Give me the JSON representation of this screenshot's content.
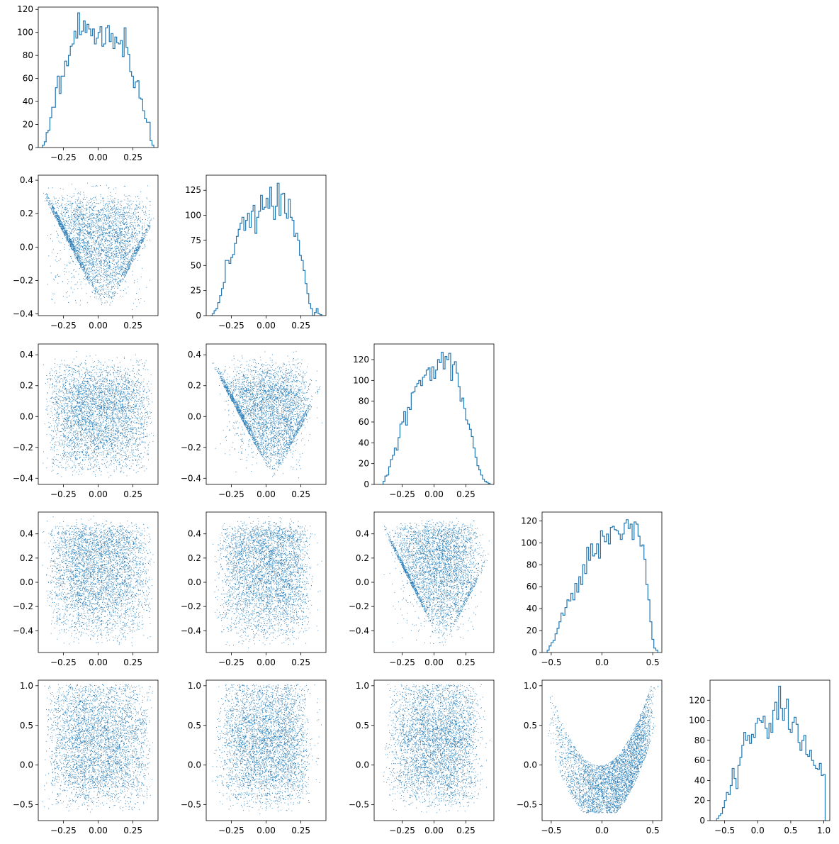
{
  "figure": {
    "type": "corner-plot",
    "grid": "5x5 lower-triangular",
    "dimensions": 5,
    "samples_per_dimension_approx": 5000
  },
  "chart_data": [
    {
      "type": "histogram",
      "panel": "hist-0",
      "row": 0,
      "col": 0,
      "histtype": "step",
      "color": "#1f77b4",
      "xlim": [
        -0.43,
        0.43
      ],
      "ylim": [
        0,
        122
      ],
      "xticks": [
        -0.25,
        0.0,
        0.25
      ],
      "xtick_labels": [
        "−0.25",
        "0.00",
        "0.25"
      ],
      "yticks": [
        0,
        20,
        40,
        60,
        80,
        100,
        120
      ],
      "ytick_labels": [
        "0",
        "20",
        "40",
        "60",
        "80",
        "100",
        "120"
      ],
      "bin_range": [
        -0.4,
        0.4
      ],
      "counts": [
        2,
        5,
        13,
        15,
        26,
        35,
        35,
        52,
        62,
        47,
        62,
        62,
        75,
        71,
        80,
        88,
        90,
        101,
        95,
        117,
        98,
        101,
        110,
        100,
        107,
        103,
        97,
        103,
        90,
        95,
        100,
        105,
        88,
        90,
        104,
        106,
        92,
        99,
        86,
        96,
        91,
        90,
        93,
        79,
        104,
        87,
        81,
        66,
        62,
        52,
        57,
        58,
        43,
        42,
        32,
        25,
        22,
        22,
        6,
        2
      ]
    },
    {
      "type": "histogram",
      "panel": "hist-1",
      "row": 1,
      "col": 1,
      "histtype": "step",
      "color": "#1f77b4",
      "xlim": [
        -0.43,
        0.43
      ],
      "ylim": [
        0,
        140
      ],
      "xticks": [
        -0.25,
        0.0,
        0.25
      ],
      "xtick_labels": [
        "−0.25",
        "0.00",
        "0.25"
      ],
      "yticks": [
        0,
        25,
        50,
        75,
        100,
        125
      ],
      "ytick_labels": [
        "0",
        "25",
        "50",
        "75",
        "100",
        "125"
      ],
      "bin_range": [
        -0.4,
        0.4
      ],
      "counts": [
        0,
        2,
        5,
        7,
        13,
        20,
        27,
        33,
        55,
        55,
        52,
        58,
        61,
        72,
        79,
        86,
        92,
        98,
        85,
        95,
        102,
        88,
        104,
        110,
        82,
        98,
        104,
        120,
        106,
        108,
        117,
        107,
        128,
        109,
        96,
        109,
        132,
        100,
        121,
        122,
        102,
        97,
        116,
        98,
        95,
        79,
        82,
        75,
        60,
        55,
        45,
        32,
        22,
        12,
        7,
        0,
        3,
        7,
        2,
        1
      ]
    },
    {
      "type": "histogram",
      "panel": "hist-2",
      "row": 2,
      "col": 2,
      "histtype": "step",
      "color": "#1f77b4",
      "xlim": [
        -0.47,
        0.47
      ],
      "ylim": [
        0,
        135
      ],
      "xticks": [
        -0.25,
        0.0,
        0.25
      ],
      "xtick_labels": [
        "−0.25",
        "0.00",
        "0.25"
      ],
      "yticks": [
        0,
        20,
        40,
        60,
        80,
        100,
        120
      ],
      "ytick_labels": [
        "0",
        "20",
        "40",
        "60",
        "80",
        "100",
        "120"
      ],
      "bin_range": [
        -0.4,
        0.44
      ],
      "counts": [
        3,
        8,
        9,
        17,
        24,
        28,
        35,
        33,
        45,
        58,
        60,
        70,
        57,
        74,
        72,
        88,
        89,
        94,
        97,
        100,
        95,
        103,
        105,
        110,
        112,
        100,
        113,
        102,
        110,
        120,
        117,
        127,
        111,
        123,
        120,
        126,
        100,
        115,
        118,
        107,
        94,
        80,
        83,
        73,
        62,
        58,
        53,
        46,
        35,
        26,
        18,
        14,
        9,
        5,
        3,
        2,
        1
      ]
    },
    {
      "type": "histogram",
      "panel": "hist-3",
      "row": 3,
      "col": 3,
      "histtype": "step",
      "color": "#1f77b4",
      "xlim": [
        -0.59,
        0.59
      ],
      "ylim": [
        0,
        128
      ],
      "xticks": [
        -0.5,
        0.0,
        0.5
      ],
      "xtick_labels": [
        "−0.5",
        "0.0",
        "0.5"
      ],
      "yticks": [
        0,
        20,
        40,
        60,
        80,
        100,
        120
      ],
      "ytick_labels": [
        "0",
        "20",
        "40",
        "60",
        "80",
        "100",
        "120"
      ],
      "bin_range": [
        -0.54,
        0.55
      ],
      "counts": [
        2,
        6,
        9,
        11,
        17,
        22,
        28,
        36,
        34,
        41,
        48,
        47,
        54,
        48,
        63,
        55,
        69,
        62,
        80,
        72,
        96,
        84,
        99,
        88,
        90,
        99,
        86,
        111,
        106,
        101,
        108,
        99,
        114,
        115,
        112,
        111,
        108,
        103,
        108,
        118,
        121,
        113,
        117,
        103,
        119,
        117,
        106,
        97,
        98,
        85,
        62,
        48,
        28,
        12,
        4,
        2
      ]
    },
    {
      "type": "histogram",
      "panel": "hist-4",
      "row": 4,
      "col": 4,
      "histtype": "step",
      "color": "#1f77b4",
      "xlim": [
        -0.72,
        1.09
      ],
      "ylim": [
        0,
        140
      ],
      "xticks": [
        -0.5,
        0.0,
        0.5,
        1.0
      ],
      "xtick_labels": [
        "−0.5",
        "0.0",
        "0.5",
        "1.0"
      ],
      "yticks": [
        0,
        20,
        40,
        60,
        80,
        100,
        120
      ],
      "ytick_labels": [
        "0",
        "20",
        "40",
        "60",
        "80",
        "100",
        "120"
      ],
      "bin_range": [
        -0.62,
        1.02
      ],
      "counts": [
        2,
        5,
        7,
        13,
        20,
        28,
        26,
        35,
        52,
        42,
        32,
        55,
        63,
        75,
        88,
        80,
        85,
        77,
        86,
        83,
        97,
        102,
        100,
        98,
        104,
        92,
        82,
        97,
        88,
        110,
        118,
        101,
        134,
        112,
        100,
        112,
        121,
        91,
        88,
        98,
        103,
        96,
        78,
        70,
        80,
        85,
        66,
        64,
        70,
        60,
        55,
        52,
        51,
        57,
        45,
        46
      ]
    },
    {
      "type": "scatter",
      "panel": "scatter-1-0",
      "row": 1,
      "col": 0,
      "x_dim": 0,
      "y_dim": 1,
      "color": "#1f77b4",
      "xlim": [
        -0.43,
        0.43
      ],
      "ylim": [
        -0.41,
        0.43
      ],
      "xticks": [
        -0.25,
        0.0,
        0.25
      ],
      "xtick_labels": [
        "−0.25",
        "0.00",
        "0.25"
      ],
      "yticks": [
        -0.4,
        -0.2,
        0.0,
        0.2,
        0.4
      ],
      "ytick_labels": [
        "−0.4",
        "−0.2",
        "0.0",
        "0.2",
        "0.4"
      ]
    },
    {
      "type": "scatter",
      "panel": "scatter-2-0",
      "row": 2,
      "col": 0,
      "x_dim": 0,
      "y_dim": 2,
      "color": "#1f77b4",
      "xlim": [
        -0.43,
        0.43
      ],
      "ylim": [
        -0.44,
        0.47
      ],
      "xticks": [
        -0.25,
        0.0,
        0.25
      ],
      "xtick_labels": [
        "−0.25",
        "0.00",
        "0.25"
      ],
      "yticks": [
        -0.4,
        -0.2,
        0.0,
        0.2,
        0.4
      ],
      "ytick_labels": [
        "−0.4",
        "−0.2",
        "0.0",
        "0.2",
        "0.4"
      ]
    },
    {
      "type": "scatter",
      "panel": "scatter-2-1",
      "row": 2,
      "col": 1,
      "x_dim": 1,
      "y_dim": 2,
      "color": "#1f77b4",
      "xlim": [
        -0.43,
        0.43
      ],
      "ylim": [
        -0.44,
        0.47
      ],
      "xticks": [
        -0.25,
        0.0,
        0.25
      ],
      "xtick_labels": [
        "−0.25",
        "0.00",
        "0.25"
      ],
      "yticks": [
        -0.4,
        -0.2,
        0.0,
        0.2,
        0.4
      ],
      "ytick_labels": [
        "−0.4",
        "−0.2",
        "0.0",
        "0.2",
        "0.4"
      ]
    },
    {
      "type": "scatter",
      "panel": "scatter-3-0",
      "row": 3,
      "col": 0,
      "x_dim": 0,
      "y_dim": 3,
      "color": "#1f77b4",
      "xlim": [
        -0.43,
        0.43
      ],
      "ylim": [
        -0.58,
        0.58
      ],
      "xticks": [
        -0.25,
        0.0,
        0.25
      ],
      "xtick_labels": [
        "−0.25",
        "0.00",
        "0.25"
      ],
      "yticks": [
        -0.4,
        -0.2,
        0.0,
        0.2,
        0.4
      ],
      "ytick_labels": [
        "−0.4",
        "−0.2",
        "0.0",
        "0.2",
        "0.4"
      ]
    },
    {
      "type": "scatter",
      "panel": "scatter-3-1",
      "row": 3,
      "col": 1,
      "x_dim": 1,
      "y_dim": 3,
      "color": "#1f77b4",
      "xlim": [
        -0.43,
        0.43
      ],
      "ylim": [
        -0.58,
        0.58
      ],
      "xticks": [
        -0.25,
        0.0,
        0.25
      ],
      "xtick_labels": [
        "−0.25",
        "0.00",
        "0.25"
      ],
      "yticks": [
        -0.4,
        -0.2,
        0.0,
        0.2,
        0.4
      ],
      "ytick_labels": [
        "−0.4",
        "−0.2",
        "0.0",
        "0.2",
        "0.4"
      ]
    },
    {
      "type": "scatter",
      "panel": "scatter-3-2",
      "row": 3,
      "col": 2,
      "x_dim": 2,
      "y_dim": 3,
      "color": "#1f77b4",
      "xlim": [
        -0.47,
        0.47
      ],
      "ylim": [
        -0.58,
        0.58
      ],
      "xticks": [
        -0.25,
        0.0,
        0.25
      ],
      "xtick_labels": [
        "−0.25",
        "0.00",
        "0.25"
      ],
      "yticks": [
        -0.4,
        -0.2,
        0.0,
        0.2,
        0.4
      ],
      "ytick_labels": [
        "−0.4",
        "−0.2",
        "0.0",
        "0.2",
        "0.4"
      ]
    },
    {
      "type": "scatter",
      "panel": "scatter-4-0",
      "row": 4,
      "col": 0,
      "x_dim": 0,
      "y_dim": 4,
      "color": "#1f77b4",
      "xlim": [
        -0.43,
        0.43
      ],
      "ylim": [
        -0.7,
        1.07
      ],
      "xticks": [
        -0.25,
        0.0,
        0.25
      ],
      "xtick_labels": [
        "−0.25",
        "0.00",
        "0.25"
      ],
      "yticks": [
        -0.5,
        0.0,
        0.5,
        1.0
      ],
      "ytick_labels": [
        "−0.5",
        "0.0",
        "0.5",
        "1.0"
      ]
    },
    {
      "type": "scatter",
      "panel": "scatter-4-1",
      "row": 4,
      "col": 1,
      "x_dim": 1,
      "y_dim": 4,
      "color": "#1f77b4",
      "xlim": [
        -0.43,
        0.43
      ],
      "ylim": [
        -0.7,
        1.07
      ],
      "xticks": [
        -0.25,
        0.0,
        0.25
      ],
      "xtick_labels": [
        "−0.25",
        "0.00",
        "0.25"
      ],
      "yticks": [
        -0.5,
        0.0,
        0.5,
        1.0
      ],
      "ytick_labels": [
        "−0.5",
        "0.0",
        "0.5",
        "1.0"
      ]
    },
    {
      "type": "scatter",
      "panel": "scatter-4-2",
      "row": 4,
      "col": 2,
      "x_dim": 2,
      "y_dim": 4,
      "color": "#1f77b4",
      "xlim": [
        -0.47,
        0.47
      ],
      "ylim": [
        -0.7,
        1.07
      ],
      "xticks": [
        -0.25,
        0.0,
        0.25
      ],
      "xtick_labels": [
        "−0.25",
        "0.00",
        "0.25"
      ],
      "yticks": [
        -0.5,
        0.0,
        0.5,
        1.0
      ],
      "ytick_labels": [
        "−0.5",
        "0.0",
        "0.5",
        "1.0"
      ]
    },
    {
      "type": "scatter",
      "panel": "scatter-4-3",
      "row": 4,
      "col": 3,
      "x_dim": 3,
      "y_dim": 4,
      "color": "#1f77b4",
      "xlim": [
        -0.59,
        0.59
      ],
      "ylim": [
        -0.7,
        1.07
      ],
      "xticks": [
        -0.5,
        0.0,
        0.5
      ],
      "xtick_labels": [
        "−0.5",
        "0.0",
        "0.5"
      ],
      "yticks": [
        -0.5,
        0.0,
        0.5,
        1.0
      ],
      "ytick_labels": [
        "−0.5",
        "0.0",
        "0.5",
        "1.0"
      ]
    }
  ]
}
